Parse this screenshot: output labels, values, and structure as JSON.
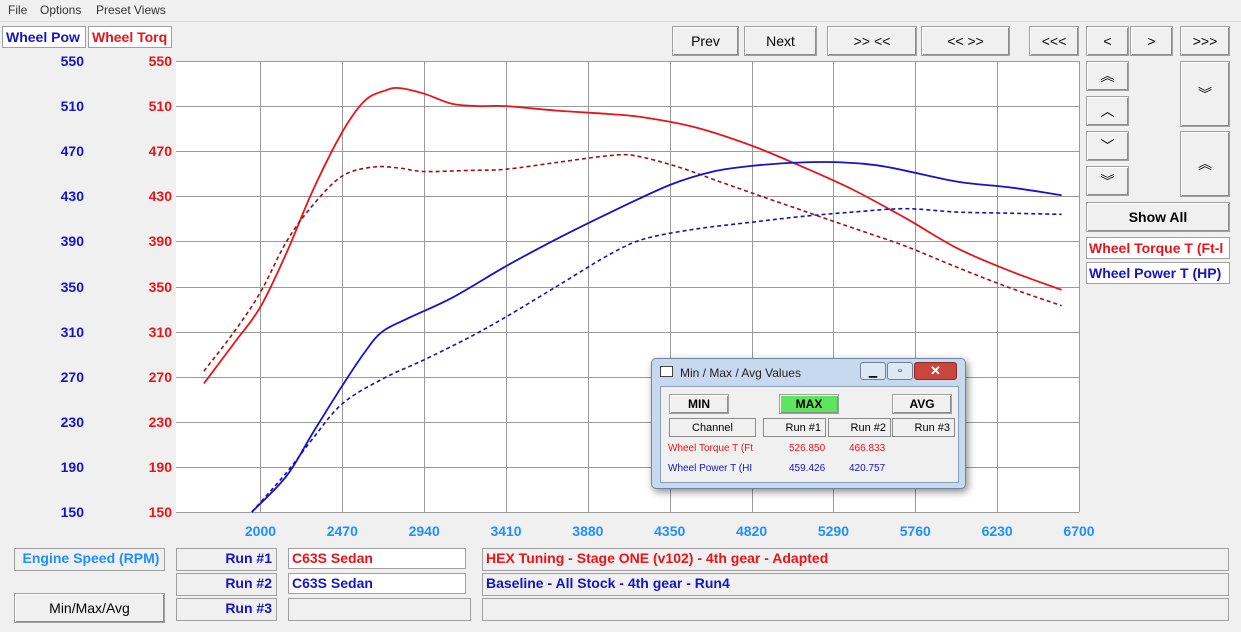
{
  "menu": [
    "File",
    "Options",
    "Preset Views"
  ],
  "axis_heads": {
    "power": "Wheel Pow",
    "torque": "Wheel Torq"
  },
  "nav": {
    "prev": "Prev",
    "next": "Next",
    "zoom_in": ">> <<",
    "zoom_out": "<< >>",
    "far_left": "<<<",
    "left": "<",
    "right": ">",
    "far_right": ">>>"
  },
  "side": {
    "up_fast": "︽",
    "up": "︿",
    "down": "﹀",
    "down_fast": "︾",
    "show_all": "Show All"
  },
  "legend": {
    "torque": "Wheel Torque T (Ft-l",
    "power": "Wheel Power T (HP)"
  },
  "bottom": {
    "engine_speed": "Engine Speed (RPM)",
    "minmax_button": "Min/Max/Avg",
    "run1_label": "Run #1",
    "run2_label": "Run #2",
    "run3_label": "Run #3",
    "run1_vehicle": "C63S Sedan",
    "run2_vehicle": "C63S Sedan",
    "run1_desc": "HEX Tuning - Stage ONE (v102) - 4th gear - Adapted",
    "run2_desc": "Baseline - All Stock - 4th gear - Run4"
  },
  "dialog": {
    "title": "Min / Max / Avg Values",
    "min": "MIN",
    "max": "MAX",
    "avg": "AVG",
    "col_channel": "Channel",
    "col_run1": "Run #1",
    "col_run2": "Run #2",
    "col_run3": "Run #3",
    "row1": {
      "channel": "Wheel Torque T (Ft",
      "run1": "526.850",
      "run2": "466.833"
    },
    "row2": {
      "channel": "Wheel Power T (HI",
      "run1": "459.426",
      "run2": "420.757"
    }
  },
  "colors": {
    "torque": "#e8141a",
    "torque_dash": "#a01010",
    "power": "#1414c8",
    "power_dash": "#1414b4",
    "max_green": "#5ce65c",
    "xtick": "#1e90ff"
  },
  "chart_data": {
    "type": "line",
    "x_ticks": [
      2000,
      2470,
      2940,
      3410,
      3880,
      4350,
      4820,
      5290,
      5760,
      6230,
      6700
    ],
    "xlim": [
      1515,
      6700
    ],
    "y_ticks": [
      150,
      190,
      230,
      270,
      310,
      350,
      390,
      430,
      470,
      510,
      550
    ],
    "ylim": [
      150,
      550
    ],
    "grid": true,
    "series": [
      {
        "name": "Wheel Torque T (Ft-l",
        "run": "Run #1",
        "style": "solid",
        "color": "#e8141a",
        "points": [
          [
            1675,
            264
          ],
          [
            1850,
            300
          ],
          [
            2000,
            332
          ],
          [
            2150,
            380
          ],
          [
            2300,
            435
          ],
          [
            2470,
            487
          ],
          [
            2600,
            515
          ],
          [
            2720,
            524
          ],
          [
            2800,
            526
          ],
          [
            2940,
            521
          ],
          [
            3100,
            512
          ],
          [
            3250,
            510
          ],
          [
            3410,
            510
          ],
          [
            3700,
            506
          ],
          [
            4000,
            503
          ],
          [
            4200,
            500
          ],
          [
            4500,
            491
          ],
          [
            4820,
            475
          ],
          [
            5100,
            457
          ],
          [
            5400,
            436
          ],
          [
            5700,
            411
          ],
          [
            6000,
            384
          ],
          [
            6300,
            364
          ],
          [
            6600,
            347
          ]
        ]
      },
      {
        "name": "Wheel Torque T (Ft-l",
        "run": "Run #2",
        "style": "dashed",
        "color": "#a01010",
        "points": [
          [
            1675,
            275
          ],
          [
            1850,
            310
          ],
          [
            2000,
            345
          ],
          [
            2150,
            390
          ],
          [
            2300,
            422
          ],
          [
            2470,
            448
          ],
          [
            2650,
            456
          ],
          [
            2800,
            455
          ],
          [
            2940,
            452
          ],
          [
            3200,
            453
          ],
          [
            3410,
            454
          ],
          [
            3700,
            460
          ],
          [
            4000,
            466
          ],
          [
            4150,
            466
          ],
          [
            4400,
            456
          ],
          [
            4600,
            445
          ],
          [
            4820,
            433
          ],
          [
            5100,
            418
          ],
          [
            5400,
            402
          ],
          [
            5700,
            386
          ],
          [
            6000,
            367
          ],
          [
            6300,
            349
          ],
          [
            6600,
            333
          ]
        ]
      },
      {
        "name": "Wheel Power T (HP)",
        "run": "Run #1",
        "style": "solid",
        "color": "#1414c8",
        "points": [
          [
            1950,
            150
          ],
          [
            2150,
            182
          ],
          [
            2300,
            220
          ],
          [
            2470,
            262
          ],
          [
            2600,
            292
          ],
          [
            2700,
            310
          ],
          [
            2850,
            322
          ],
          [
            3100,
            340
          ],
          [
            3410,
            368
          ],
          [
            3700,
            392
          ],
          [
            4000,
            415
          ],
          [
            4350,
            440
          ],
          [
            4600,
            452
          ],
          [
            4820,
            457
          ],
          [
            5100,
            460
          ],
          [
            5350,
            460
          ],
          [
            5600,
            456
          ],
          [
            6000,
            443
          ],
          [
            6300,
            438
          ],
          [
            6600,
            431
          ]
        ]
      },
      {
        "name": "Wheel Power T (HP)",
        "run": "Run #2",
        "style": "dashed",
        "color": "#1414b4",
        "points": [
          [
            1950,
            150
          ],
          [
            2150,
            185
          ],
          [
            2300,
            215
          ],
          [
            2470,
            246
          ],
          [
            2700,
            268
          ],
          [
            2940,
            285
          ],
          [
            3200,
            305
          ],
          [
            3410,
            323
          ],
          [
            3700,
            350
          ],
          [
            4000,
            378
          ],
          [
            4200,
            392
          ],
          [
            4500,
            401
          ],
          [
            4820,
            407
          ],
          [
            5100,
            412
          ],
          [
            5400,
            416
          ],
          [
            5700,
            419
          ],
          [
            6000,
            416
          ],
          [
            6300,
            415
          ],
          [
            6600,
            414
          ]
        ]
      }
    ]
  }
}
